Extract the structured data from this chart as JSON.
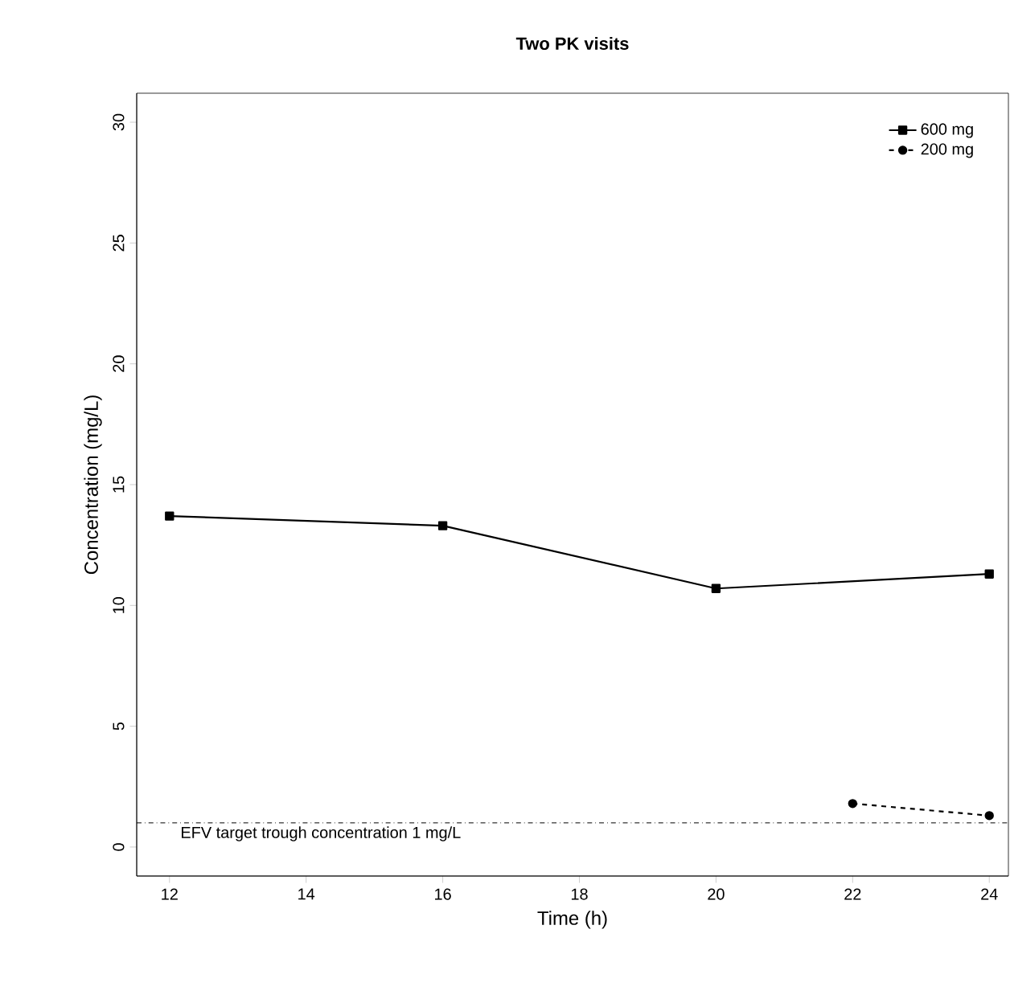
{
  "chart_data": {
    "type": "line",
    "title": "Two PK visits",
    "xlabel": "Time (h)",
    "ylabel": "Concentration (mg/L)",
    "xlim": [
      11.52,
      24.28
    ],
    "ylim": [
      -1.2,
      31.2
    ],
    "xticks": [
      12,
      14,
      16,
      18,
      20,
      22,
      24
    ],
    "yticks": [
      0,
      5,
      10,
      15,
      20,
      25,
      30
    ],
    "series": [
      {
        "name": "600 mg",
        "color": "#000000",
        "marker": "square",
        "line_style": "solid",
        "x": [
          12,
          16,
          20,
          24
        ],
        "values": [
          13.7,
          13.3,
          10.7,
          11.3
        ]
      },
      {
        "name": "200 mg",
        "color": "#000000",
        "marker": "circle",
        "line_style": "dashed",
        "x": [
          22,
          24
        ],
        "values": [
          1.8,
          1.3
        ]
      }
    ],
    "ref_lines": [
      {
        "axis": "y",
        "value": 1,
        "label": "EFV target trough concentration 1 mg/L",
        "color": "#000000",
        "line_style": "dashdot"
      }
    ],
    "legend": "top right",
    "grid": false
  }
}
